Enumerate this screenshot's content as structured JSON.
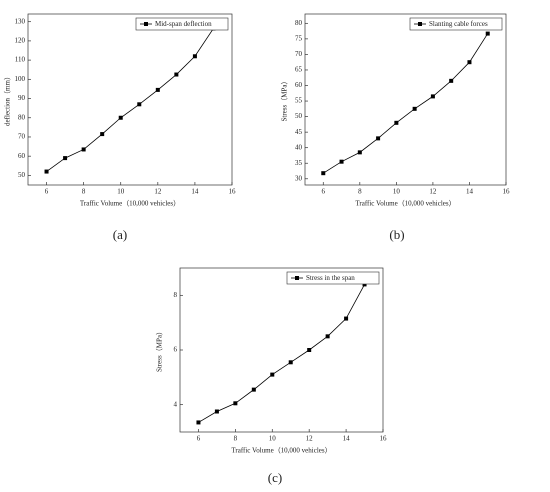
{
  "chart_data": [
    {
      "type": "line",
      "panel_label": "(a)",
      "x_label": "Traffic Volume（10,000 vehicles）",
      "y_label": "deflection（mm）",
      "x": [
        6,
        7,
        8,
        9,
        10,
        11,
        12,
        13,
        14,
        15
      ],
      "series": [
        {
          "name": "Mid-span deflection",
          "color": "#000000",
          "values": [
            52,
            59,
            63.5,
            71.5,
            80,
            87,
            94.5,
            102.5,
            112,
            126.5
          ]
        }
      ],
      "xlim": [
        5,
        16
      ],
      "xticks": [
        6,
        8,
        10,
        12,
        14,
        16
      ],
      "ylim": [
        45,
        134
      ],
      "yticks": [
        50,
        60,
        70,
        80,
        90,
        100,
        110,
        120,
        130
      ]
    },
    {
      "type": "line",
      "panel_label": "(b)",
      "x_label": "Traffic Volume（10,000 vehicles）",
      "y_label": "Stress（MPa）",
      "x": [
        6,
        7,
        8,
        9,
        10,
        11,
        12,
        13,
        14,
        15
      ],
      "series": [
        {
          "name": "Slanting cable forces",
          "color": "#000000",
          "values": [
            31.8,
            35.5,
            38.5,
            43,
            48,
            52.5,
            56.5,
            61.5,
            67.5,
            76.7
          ]
        }
      ],
      "xlim": [
        5,
        16
      ],
      "xticks": [
        6,
        8,
        10,
        12,
        14,
        16
      ],
      "ylim": [
        28,
        83
      ],
      "yticks": [
        30,
        35,
        40,
        45,
        50,
        55,
        60,
        65,
        70,
        75,
        80
      ]
    },
    {
      "type": "line",
      "panel_label": "(c)",
      "x_label": "Traffic Volume（10,000 vehicles）",
      "y_label": "Stress（MPa）",
      "x": [
        6,
        7,
        8,
        9,
        10,
        11,
        12,
        13,
        14,
        15
      ],
      "series": [
        {
          "name": "Stress in the span",
          "color": "#000000",
          "values": [
            3.35,
            3.75,
            4.05,
            4.55,
            5.1,
            5.55,
            6.0,
            6.5,
            7.15,
            8.4
          ]
        }
      ],
      "xlim": [
        5,
        16
      ],
      "xticks": [
        6,
        8,
        10,
        12,
        14,
        16
      ],
      "ylim": [
        3,
        9
      ],
      "yticks": [
        4,
        6,
        8
      ]
    }
  ]
}
